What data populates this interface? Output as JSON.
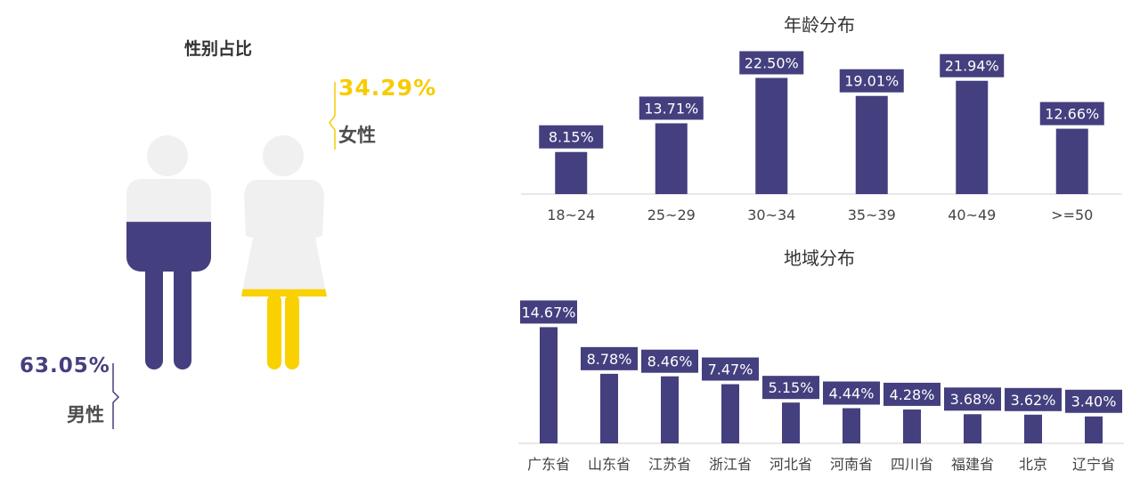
{
  "gender": {
    "title": "性别占比",
    "female": {
      "percent": "34.29%",
      "label": "女性",
      "share": 0.3429
    },
    "male": {
      "percent": "63.05%",
      "label": "男性",
      "share": 0.6305
    },
    "colors": {
      "male": "#443f7e",
      "female": "#fad100",
      "empty": "#f0f0f0"
    }
  },
  "chart_data": [
    {
      "type": "bar",
      "title": "年龄分布",
      "categories": [
        "18~24",
        "25~29",
        "30~34",
        "35~39",
        "40~49",
        ">=50"
      ],
      "values": [
        8.15,
        13.71,
        22.5,
        19.01,
        21.94,
        12.66
      ],
      "labels": [
        "8.15%",
        "13.71%",
        "22.50%",
        "19.01%",
        "21.94%",
        "12.66%"
      ],
      "color": "#443f7e"
    },
    {
      "type": "bar",
      "title": "地域分布",
      "categories": [
        "广东省",
        "山东省",
        "江苏省",
        "浙江省",
        "河北省",
        "河南省",
        "四川省",
        "福建省",
        "北京",
        "辽宁省"
      ],
      "values": [
        14.67,
        8.78,
        8.46,
        7.47,
        5.15,
        4.44,
        4.28,
        3.68,
        3.62,
        3.4
      ],
      "labels": [
        "14.67%",
        "8.78%",
        "8.46%",
        "7.47%",
        "5.15%",
        "4.44%",
        "4.28%",
        "3.68%",
        "3.62%",
        "3.40%"
      ],
      "color": "#443f7e"
    }
  ]
}
